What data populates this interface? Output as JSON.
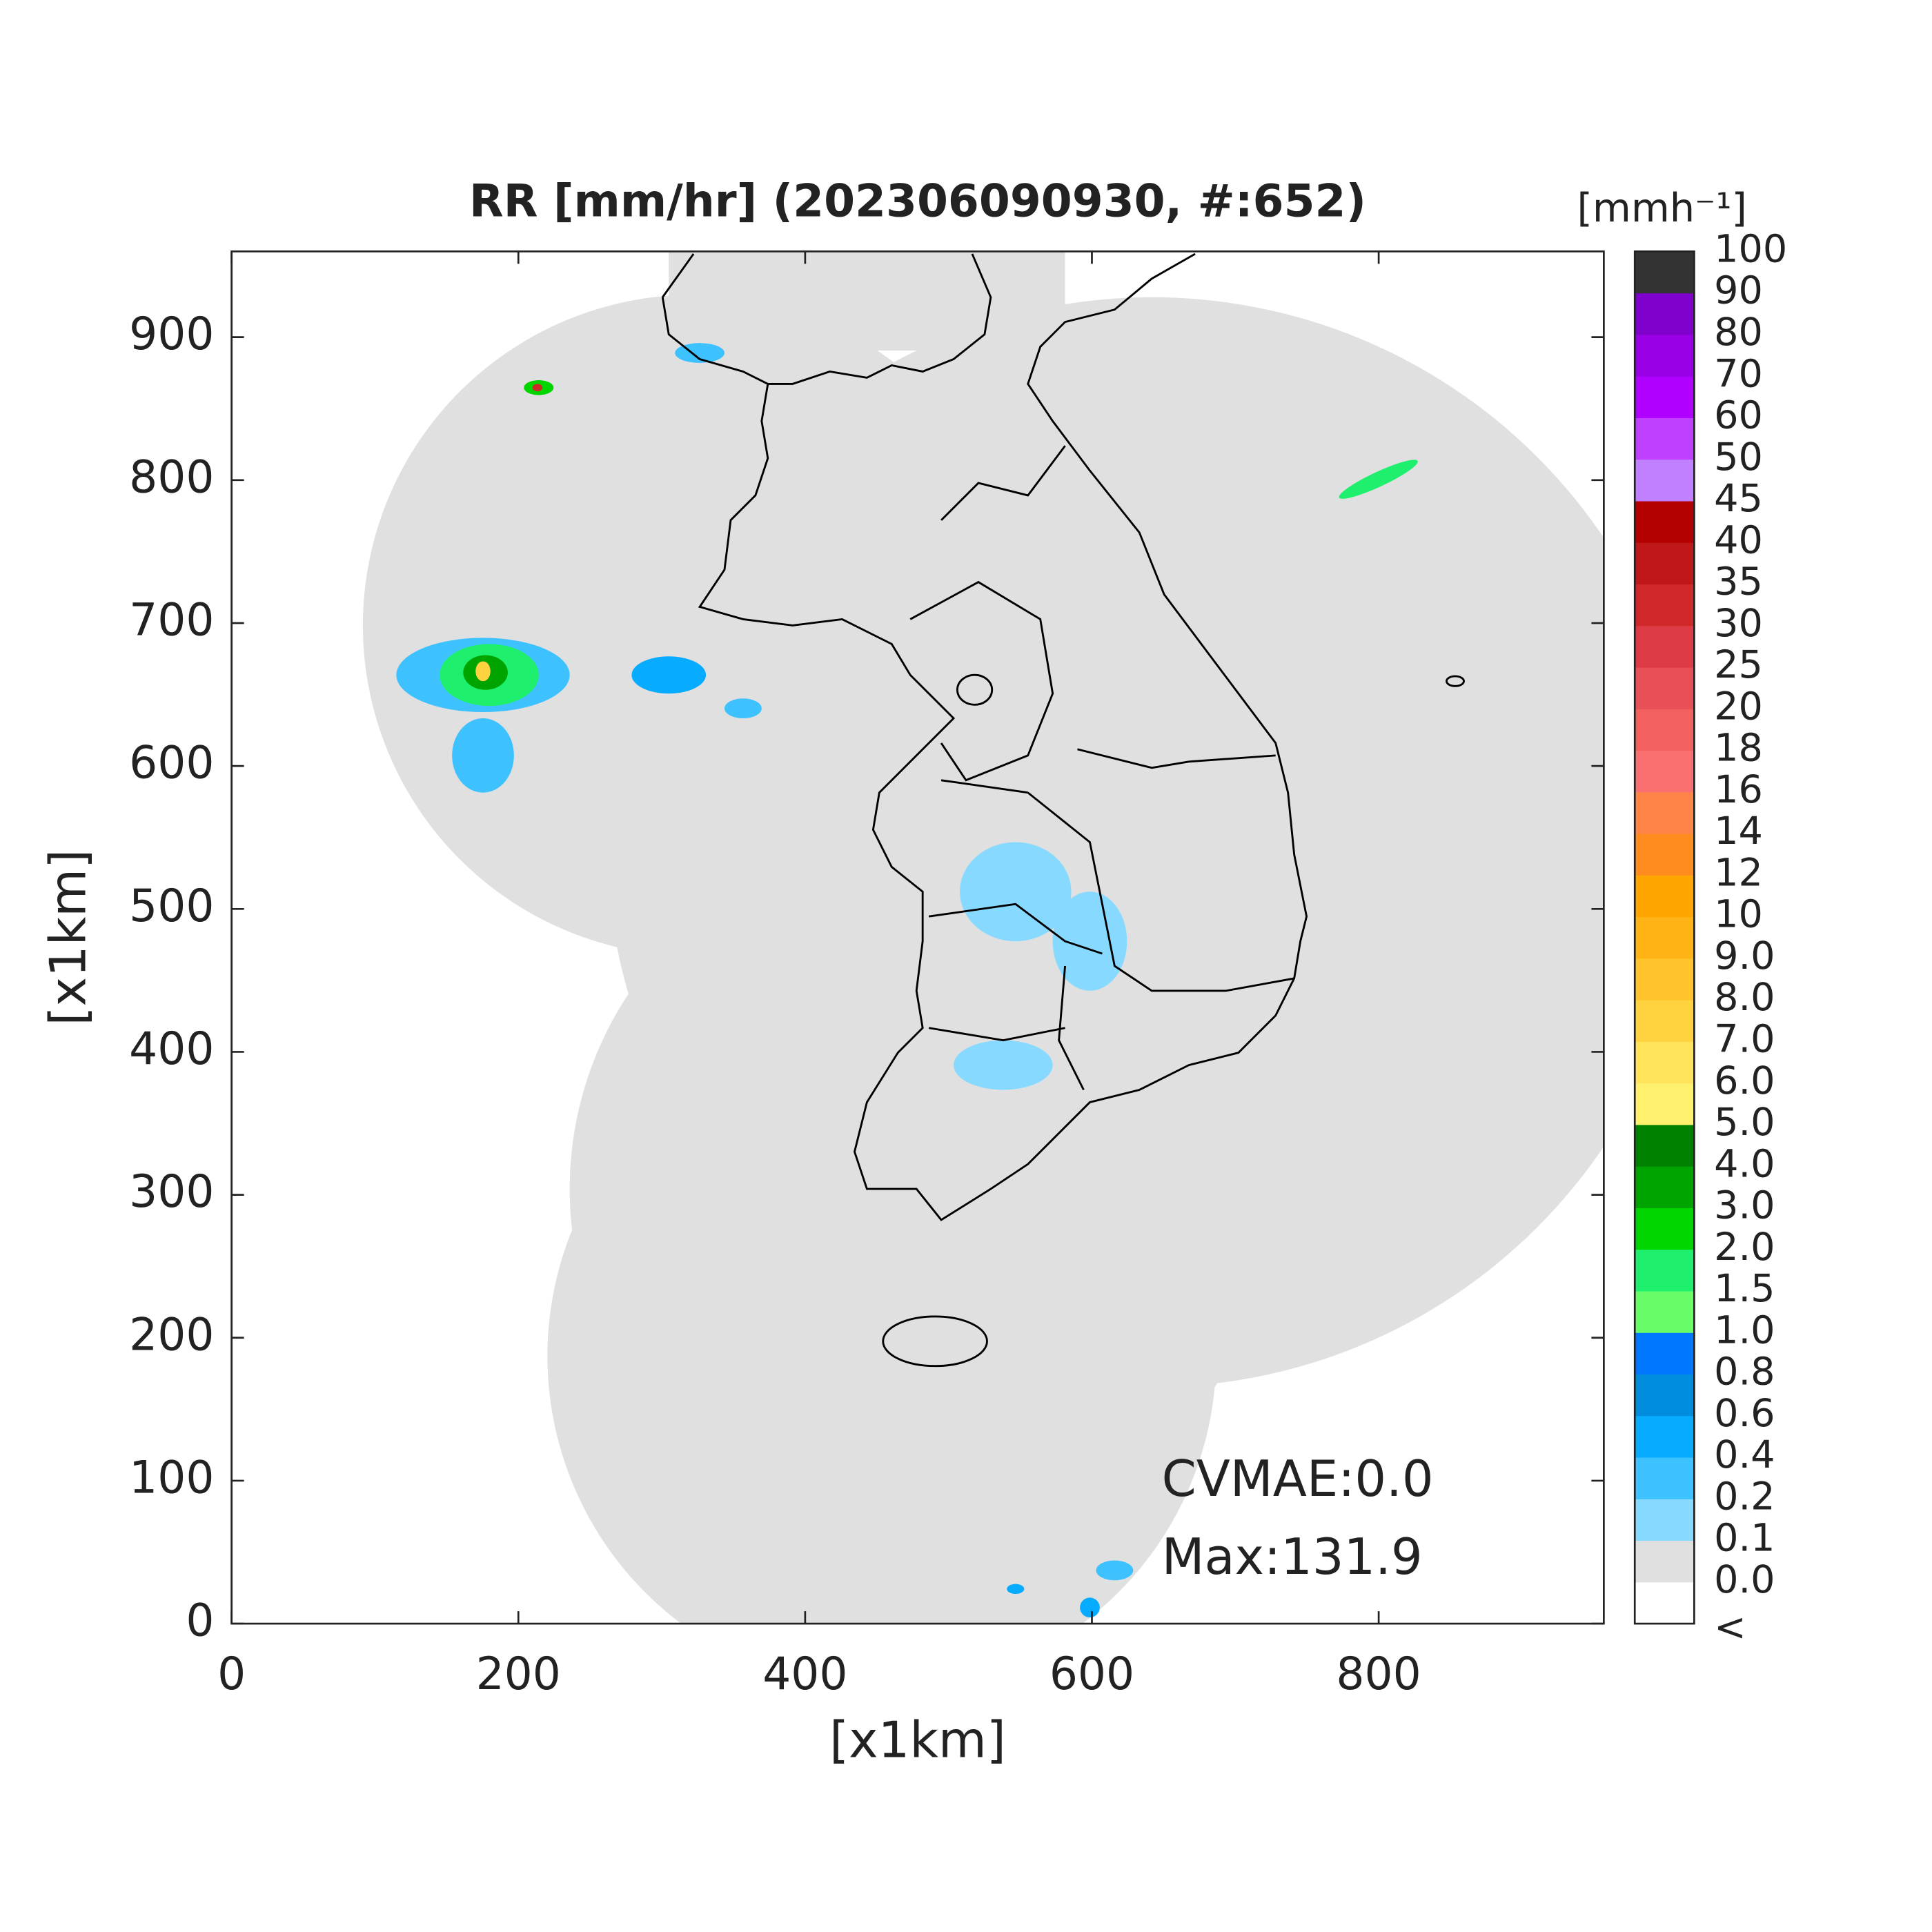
{
  "chart_data": {
    "type": "heatmap",
    "title": "RR [mm/hr] (202306090930, #:652)",
    "x_label": "[x1km]",
    "y_label": "[x1km]",
    "xlim": [
      0,
      957
    ],
    "ylim": [
      0,
      960
    ],
    "xticks": [
      0,
      200,
      400,
      600,
      800
    ],
    "yticks": [
      0,
      100,
      200,
      300,
      400,
      500,
      600,
      700,
      800,
      900
    ],
    "annotations": [
      "CVMAE:0.0",
      "Max:131.9"
    ],
    "colorbar": {
      "label": "[mmh⁻¹]",
      "ticks": [
        "<",
        "0.0",
        "0.1",
        "0.2",
        "0.4",
        "0.6",
        "0.8",
        "1.0",
        "1.5",
        "2.0",
        "3.0",
        "4.0",
        "5.0",
        "6.0",
        "7.0",
        "8.0",
        "9.0",
        "10",
        "12",
        "14",
        "16",
        "18",
        "20",
        "25",
        "30",
        "35",
        "40",
        "45",
        "50",
        "60",
        "70",
        "80",
        "90",
        "100"
      ],
      "colors": [
        "#ffffff",
        "#e0e0e0",
        "#87d9ff",
        "#3ec1ff",
        "#07abff",
        "#008dde",
        "#0077ff",
        "#69fc69",
        "#1ef06e",
        "#00d500",
        "#00a400",
        "#008000",
        "#fff06e",
        "#ffe35a",
        "#ffd23f",
        "#ffc42b",
        "#ffb315",
        "#ffa500",
        "#ff8c1f",
        "#ff8448",
        "#fa7070",
        "#f26060",
        "#e85058",
        "#dd3c46",
        "#d02828",
        "#c01818",
        "#b40000",
        "#c080ff",
        "#c040ff",
        "#b000ff",
        "#9a00e6",
        "#8000cc",
        "#333333"
      ]
    }
  }
}
